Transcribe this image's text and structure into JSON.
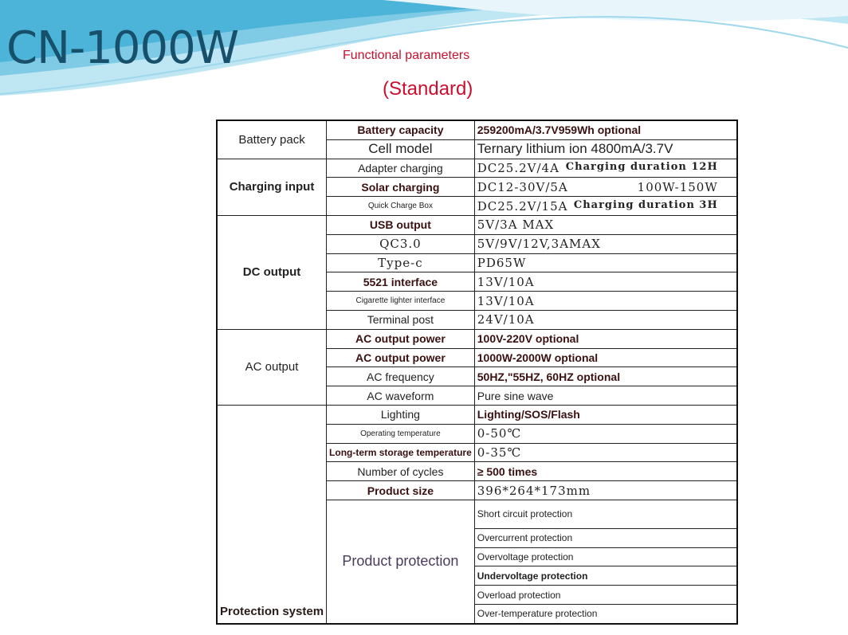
{
  "title": "CN-1000W",
  "subtitle": "Functional parameters",
  "standard": "(Standard)",
  "colors": {
    "title": "#17506a",
    "subtitle": "#c8102e",
    "wave": "#4bb4d8"
  },
  "groups": [
    {
      "label": "Battery pack",
      "rows": [
        {
          "key": "Battery capacity",
          "value": "259200mA/3.7V959Wh optional"
        },
        {
          "key": "Cell model",
          "value": "Ternary lithium ion 4800mA/3.7V"
        }
      ]
    },
    {
      "label": "Charging input",
      "rows": [
        {
          "key": "Adapter charging",
          "value": "DC25.2V/4A",
          "extra": "Charging duration 12H"
        },
        {
          "key": "Solar charging",
          "value": "DC12-30V/5A",
          "extra": "100W-150W"
        },
        {
          "key": "Quick Charge Box",
          "value": "DC25.2V/15A",
          "extra": "Charging duration 3H"
        }
      ]
    },
    {
      "label": "DC output",
      "rows": [
        {
          "key": "USB output",
          "value": "5V/3A MAX"
        },
        {
          "key": "QC3.0",
          "value": "5V/9V/12V,3AMAX"
        },
        {
          "key": "Type-c",
          "value": "PD65W"
        },
        {
          "key": "5521 interface",
          "value": "13V/10A"
        },
        {
          "key": "Cigarette lighter interface",
          "value": "13V/10A"
        },
        {
          "key": "Terminal post",
          "value": "24V/10A"
        }
      ]
    },
    {
      "label": "AC output",
      "rows": [
        {
          "key": "AC output power",
          "value": "100V-220V optional"
        },
        {
          "key": "AC output power",
          "value": "1000W-2000W optional"
        },
        {
          "key": "AC frequency",
          "value": "50HZ,\"55HZ, 60HZ optional"
        },
        {
          "key": "AC waveform",
          "value": "Pure sine wave"
        }
      ]
    },
    {
      "label": "Protection system",
      "rows": [
        {
          "key": "Lighting",
          "value": "Lighting/SOS/Flash"
        },
        {
          "key": "Operating temperature",
          "value": "0-50℃"
        },
        {
          "key": "Long-term storage temperature",
          "value": "0-35℃"
        },
        {
          "key": "Number of cycles",
          "value": "≥ 500 times"
        },
        {
          "key": "Product size",
          "value": "396*264*173mm"
        }
      ],
      "product_protection": {
        "label": "Product protection",
        "items": [
          "Short circuit protection",
          "Overcurrent protection",
          "Overvoltage protection",
          "Undervoltage protection",
          "Overload protection",
          "Over-temperature protection"
        ]
      }
    }
  ]
}
